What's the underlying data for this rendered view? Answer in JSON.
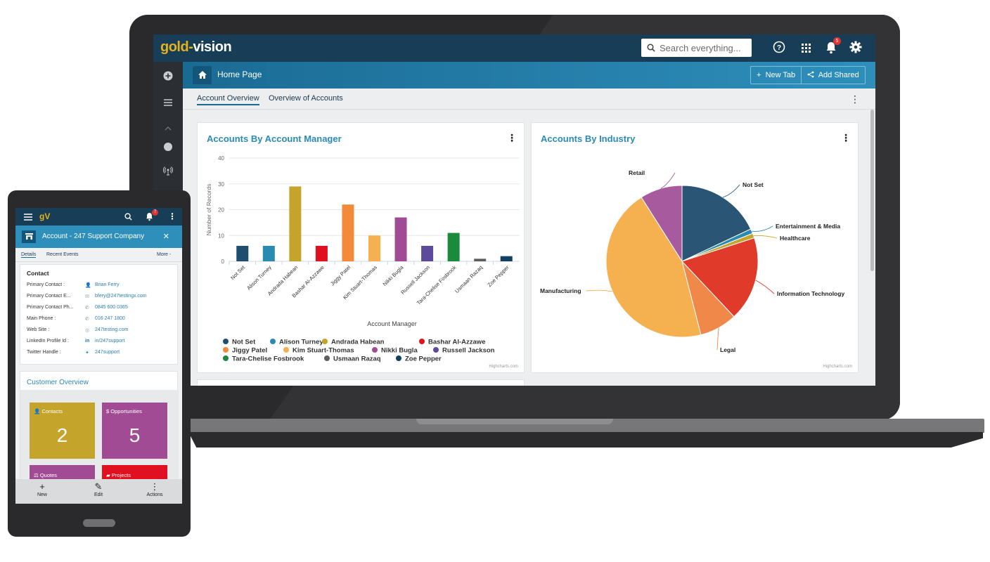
{
  "app": {
    "logo_gold": "gold-",
    "logo_rest": "vision",
    "search_placeholder": "Search everything...",
    "notification_count": "5",
    "colors": {
      "nav": "#183d57",
      "accent": "#2e8fbb",
      "gold": "#e6b21b"
    }
  },
  "page": {
    "title": "Home Page",
    "new_tab_label": "New Tab",
    "add_shared_label": "Add Shared",
    "tabs": [
      "Account Overview",
      "Overview of Accounts"
    ],
    "active_tab": "Account Overview"
  },
  "widgets": {
    "bar": {
      "title": "Accounts By Account Manager",
      "credit": "Highcharts.com"
    },
    "pie": {
      "title": "Accounts By Industry",
      "credit": "Highcharts.com"
    }
  },
  "chart_data": [
    {
      "type": "bar",
      "title": "Accounts By Account Manager",
      "xlabel": "Account Manager",
      "ylabel": "Number of Records",
      "ylim": [
        0,
        40
      ],
      "yticks": [
        0,
        10,
        20,
        30,
        40
      ],
      "grid": true,
      "legend": "bottom",
      "categories": [
        "Not Set",
        "Alison Turney",
        "Andrada Habean",
        "Bashar Al-Azzawe",
        "Jiggy Patel",
        "Kim Stuart-Thomas",
        "Nikki Bugla",
        "Russell Jackson",
        "Tara-Chelise Fosbrook",
        "Usmaan Razaq",
        "Zoe Pepper"
      ],
      "values": [
        6,
        6,
        29,
        6,
        22,
        10,
        17,
        6,
        11,
        1,
        2
      ],
      "colors": [
        "#1f4e6e",
        "#2a8ab0",
        "#c4a42a",
        "#e0101e",
        "#f28a3c",
        "#f5b04f",
        "#a24b95",
        "#5e4a9a",
        "#1b8a3b",
        "#5d5d5d",
        "#12415f"
      ]
    },
    {
      "type": "pie",
      "title": "Accounts By Industry",
      "legend": "none",
      "labels": [
        "Not Set",
        "Entertainment & Media",
        "Healthcare",
        "Information Technology",
        "Legal",
        "Manufacturing",
        "Retail"
      ],
      "values": [
        18,
        1,
        1,
        18,
        8,
        45,
        9
      ],
      "colors": [
        "#2a5574",
        "#2a8ab0",
        "#c4a42a",
        "#e03a2a",
        "#f0884a",
        "#f5b04f",
        "#a85a9e"
      ]
    }
  ],
  "mobile": {
    "notification_count": "7",
    "header_title": "Account - 247 Support Company",
    "tabs": {
      "details": "Details",
      "recent_events": "Recent Events",
      "more": "More -"
    },
    "contact": {
      "heading": "Contact",
      "rows": [
        {
          "key": "Primary Contact :",
          "value": "Brian Ferry",
          "icon": "user-icon"
        },
        {
          "key": "Primary Contact E...",
          "value": "bfery@247testingx.com",
          "icon": "mail-icon"
        },
        {
          "key": "Primary Contact Ph...",
          "value": "0845 600 0365",
          "icon": "phone-icon"
        },
        {
          "key": "Main Phone :",
          "value": "016 247 1800",
          "icon": "phone-icon"
        },
        {
          "key": "Web Site :",
          "value": "247testing.com",
          "icon": "globe-icon"
        },
        {
          "key": "LinkedIn Profile Id :",
          "value": "in/247support",
          "icon": "linkedin-icon"
        },
        {
          "key": "Twitter Handle :",
          "value": "247support",
          "icon": "twitter-icon"
        }
      ]
    },
    "overview": {
      "heading": "Customer Overview",
      "tiles": [
        {
          "label": "Contacts",
          "value": "2",
          "color": "#c4a42a"
        },
        {
          "label": "Opportunities",
          "value": "5",
          "color": "#a24b95"
        },
        {
          "label": "Quotes",
          "value": "",
          "color": "#a24b95"
        },
        {
          "label": "Projects",
          "value": "",
          "color": "#e0101e"
        }
      ]
    },
    "footer": {
      "new": "New",
      "edit": "Edit",
      "actions": "Actions"
    }
  }
}
